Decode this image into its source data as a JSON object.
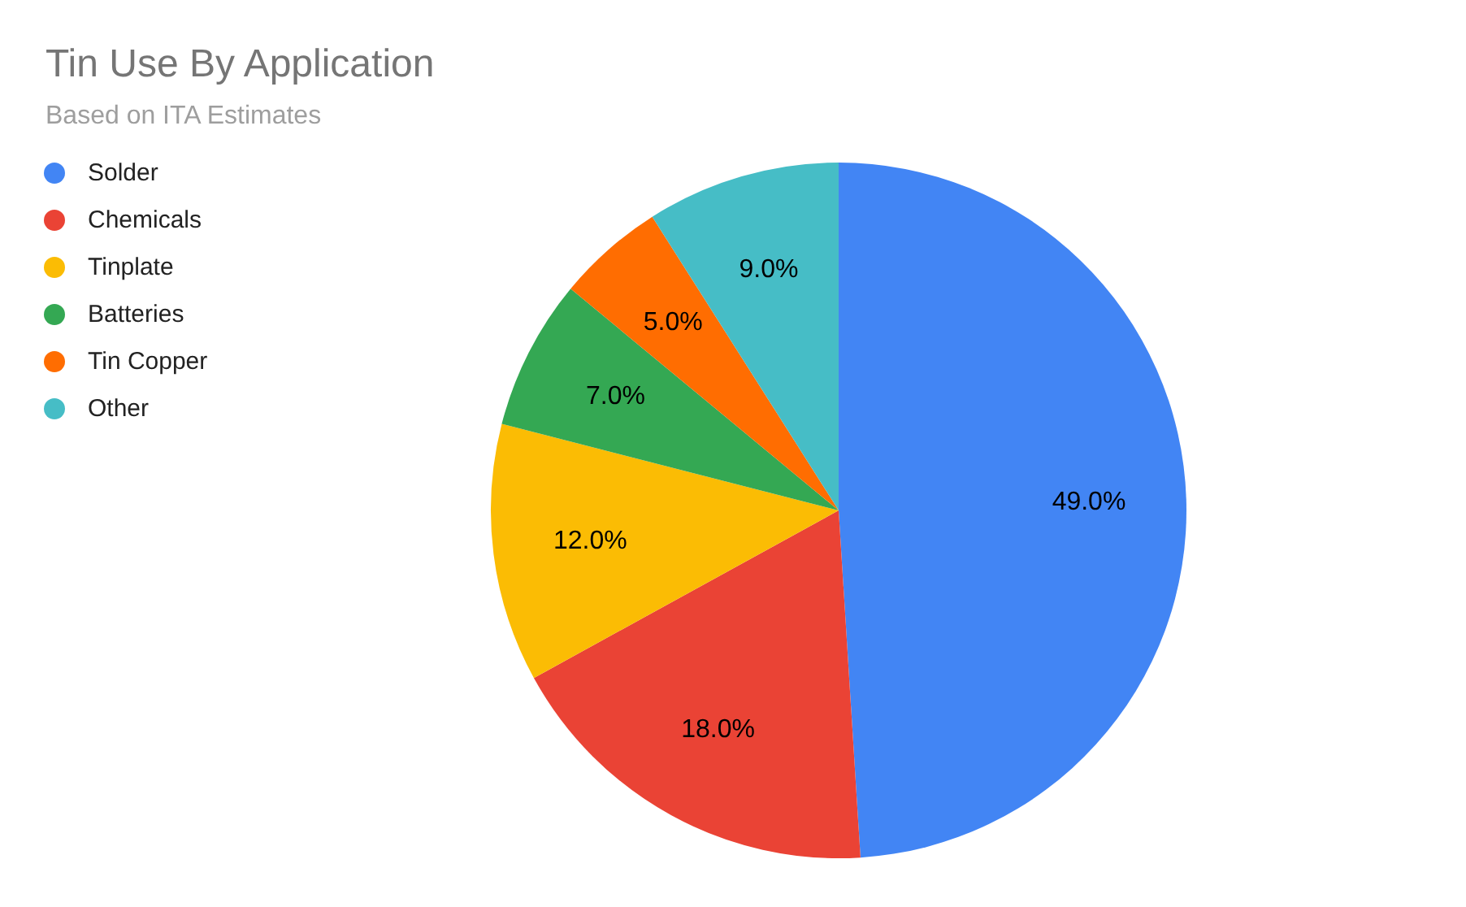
{
  "chart_data": {
    "type": "pie",
    "title": "Tin Use By Application",
    "subtitle": "Based on ITA Estimates",
    "categories": [
      "Solder",
      "Chemicals",
      "Tinplate",
      "Batteries",
      "Tin Copper",
      "Other"
    ],
    "values": [
      49,
      18,
      12,
      7,
      5,
      9
    ],
    "colors": [
      "#4285f4",
      "#ea4335",
      "#fbbc04",
      "#34a853",
      "#ff6d01",
      "#46bdc6"
    ],
    "value_labels": [
      "49.0%",
      "18.0%",
      "12.0%",
      "7.0%",
      "5.0%",
      "9.0%"
    ],
    "legend": "top left"
  }
}
